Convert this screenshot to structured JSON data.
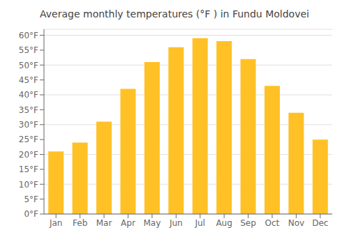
{
  "chart_data": {
    "type": "bar",
    "title": "Average monthly temperatures (°F ) in Fundu Moldovei",
    "categories": [
      "Jan",
      "Feb",
      "Mar",
      "Apr",
      "May",
      "Jun",
      "Jul",
      "Aug",
      "Sep",
      "Oct",
      "Nov",
      "Dec"
    ],
    "values": [
      21,
      24,
      31,
      42,
      51,
      56,
      59,
      58,
      52,
      43,
      34,
      25
    ],
    "color": "#FFC125",
    "ylim": [
      0,
      62
    ],
    "yticks": [
      {
        "value": 0,
        "label": "0°F"
      },
      {
        "value": 5,
        "label": "5°F"
      },
      {
        "value": 10,
        "label": "10°F"
      },
      {
        "value": 15,
        "label": "15°F"
      },
      {
        "value": 20,
        "label": "20°F"
      },
      {
        "value": 25,
        "label": "25°F"
      },
      {
        "value": 30,
        "label": "30°F"
      },
      {
        "value": 35,
        "label": "35°F"
      },
      {
        "value": 40,
        "label": "40°F"
      },
      {
        "value": 45,
        "label": "45°F"
      },
      {
        "value": 50,
        "label": "50°F"
      },
      {
        "value": 55,
        "label": "55°F"
      },
      {
        "value": 60,
        "label": "60°F"
      }
    ],
    "grid": true
  }
}
